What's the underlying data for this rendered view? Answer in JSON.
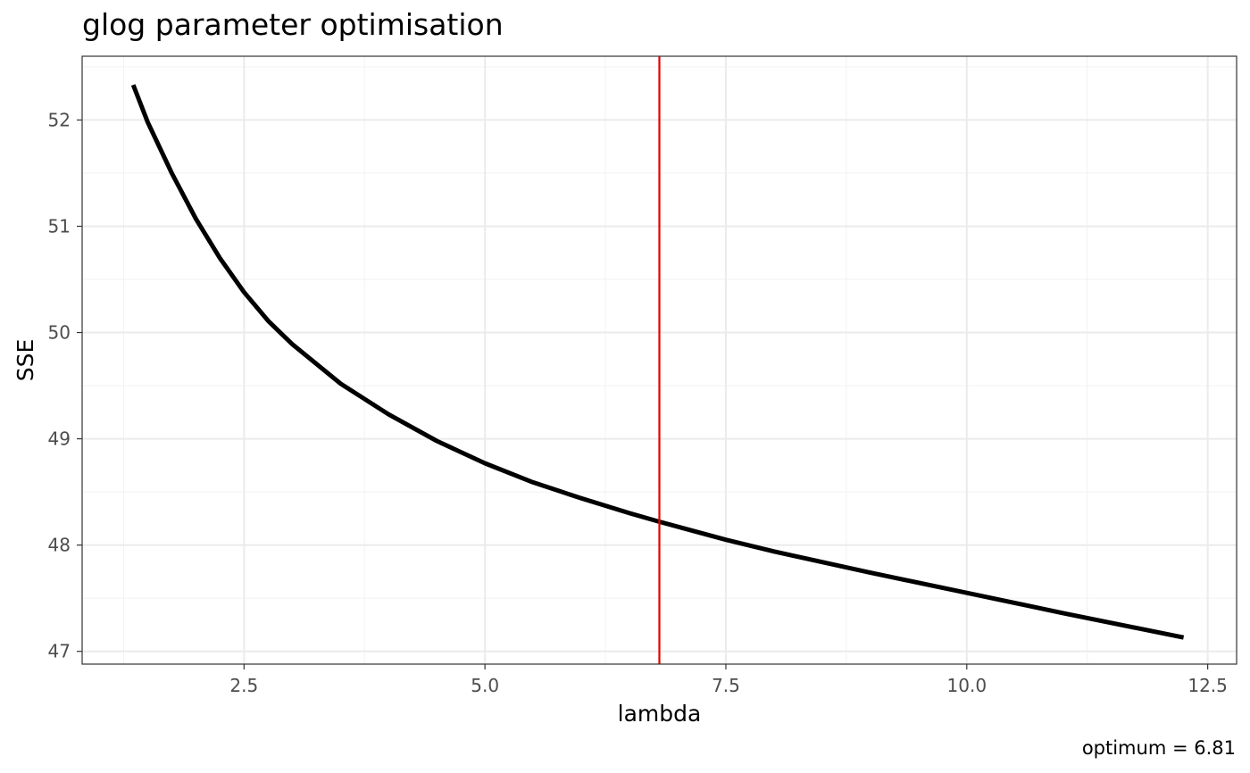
{
  "chart_data": {
    "type": "line",
    "title": "glog parameter optimisation",
    "xlabel": "lambda",
    "ylabel": "SSE",
    "caption": "optimum = 6.81",
    "xlim": [
      0.82,
      12.8
    ],
    "ylim": [
      46.88,
      52.6
    ],
    "x_ticks": [
      2.5,
      5.0,
      7.5,
      10.0,
      12.5
    ],
    "x_tick_labels": [
      "2.5",
      "5.0",
      "7.5",
      "10.0",
      "12.5"
    ],
    "y_ticks": [
      47,
      48,
      49,
      50,
      51,
      52
    ],
    "y_tick_labels": [
      "47",
      "48",
      "49",
      "50",
      "51",
      "52"
    ],
    "grid": true,
    "vline": {
      "x": 6.81,
      "color": "#e60000"
    },
    "series_color": "#000000",
    "series": [
      {
        "x": [
          1.35,
          1.5,
          1.75,
          2.0,
          2.25,
          2.5,
          2.75,
          3.0,
          3.5,
          4.0,
          4.5,
          5.0,
          5.5,
          6.0,
          6.5,
          6.81,
          7.5,
          8.0,
          9.0,
          10.0,
          11.0,
          12.25
        ],
        "y": [
          52.33,
          51.98,
          51.5,
          51.07,
          50.7,
          50.38,
          50.11,
          49.89,
          49.52,
          49.23,
          48.98,
          48.77,
          48.59,
          48.44,
          48.3,
          48.22,
          48.05,
          47.94,
          47.74,
          47.55,
          47.36,
          47.13
        ]
      }
    ]
  }
}
